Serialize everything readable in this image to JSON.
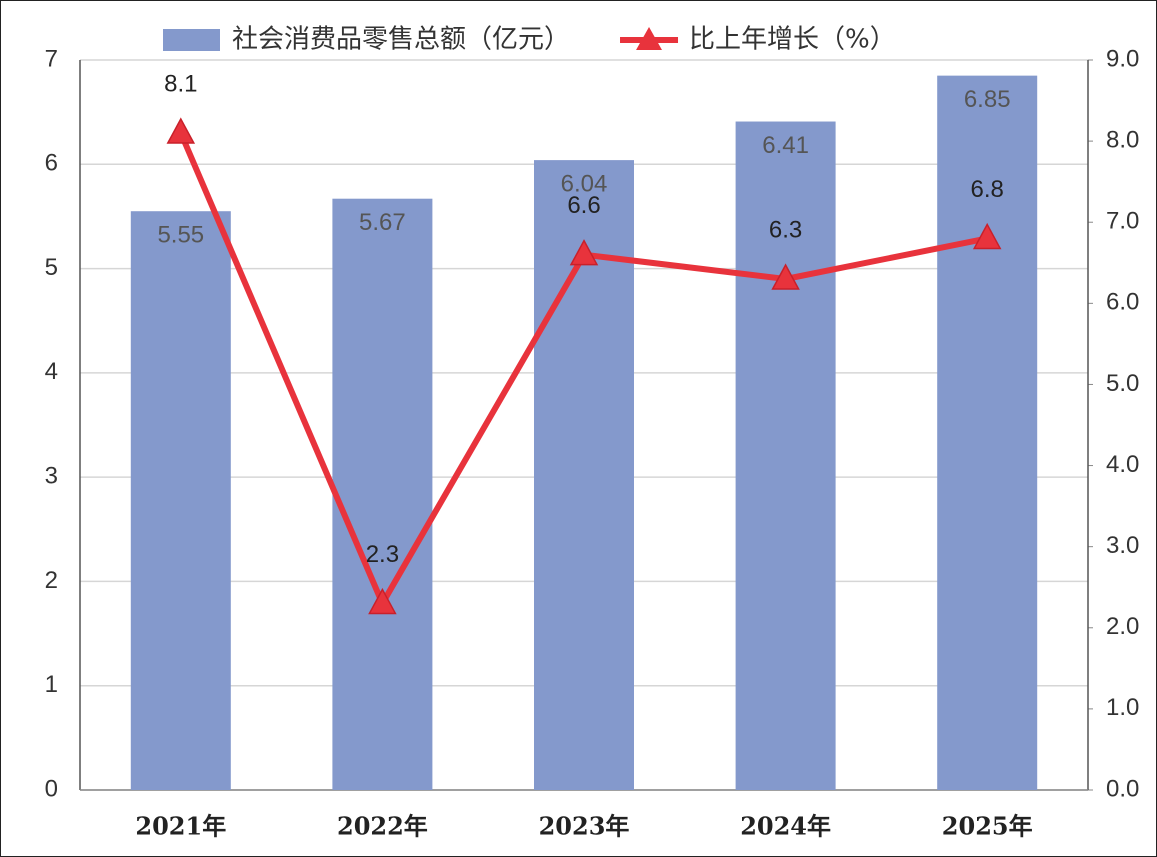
{
  "chart_data": {
    "type": "bar",
    "categories": [
      "2021年",
      "2022年",
      "2023年",
      "2024年",
      "2025年"
    ],
    "series": [
      {
        "name": "社会消费品零售总额（亿元）",
        "type": "bar",
        "color": "#8499cc",
        "values": [
          5.55,
          5.67,
          6.04,
          6.41,
          6.85
        ]
      },
      {
        "name": "比上年增长（%）",
        "type": "line",
        "axis": "y2",
        "color": "#e8333c",
        "values": [
          8.1,
          2.3,
          6.6,
          6.3,
          6.8
        ]
      }
    ],
    "ylim": [
      0,
      7
    ],
    "yticks": [
      0,
      1,
      2,
      3,
      4,
      5,
      6,
      7
    ],
    "y2lim": [
      0,
      9
    ],
    "y2ticks": [
      {
        "value": 0,
        "label": "0.0"
      },
      {
        "value": 1,
        "label": "1.0"
      },
      {
        "value": 2,
        "label": "2.0"
      },
      {
        "value": 3,
        "label": "3.0"
      },
      {
        "value": 4,
        "label": "4.0"
      },
      {
        "value": 5,
        "label": "5.0"
      },
      {
        "value": 6,
        "label": "6.0"
      },
      {
        "value": 7,
        "label": "7.0"
      },
      {
        "value": 8,
        "label": "8.0"
      },
      {
        "value": 9,
        "label": "9.0"
      }
    ],
    "grid": true,
    "legend": "top"
  }
}
